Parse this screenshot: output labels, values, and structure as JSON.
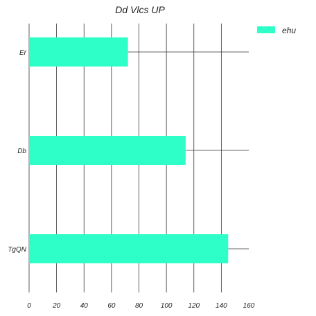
{
  "chart_data": {
    "type": "bar",
    "orientation": "horizontal",
    "title": "Dd Vlcs UP",
    "xlabel": "",
    "ylabel": "",
    "categories": [
      "Er",
      "Db",
      "TgQN"
    ],
    "series": [
      {
        "name": "ehu",
        "values": [
          72,
          114,
          145
        ],
        "color": "#2effc8"
      }
    ],
    "xlim": [
      0,
      160
    ],
    "xticks": [
      0,
      20,
      40,
      60,
      80,
      100,
      120,
      140,
      160
    ],
    "grid": "vertical",
    "legend_position": "top-right"
  }
}
